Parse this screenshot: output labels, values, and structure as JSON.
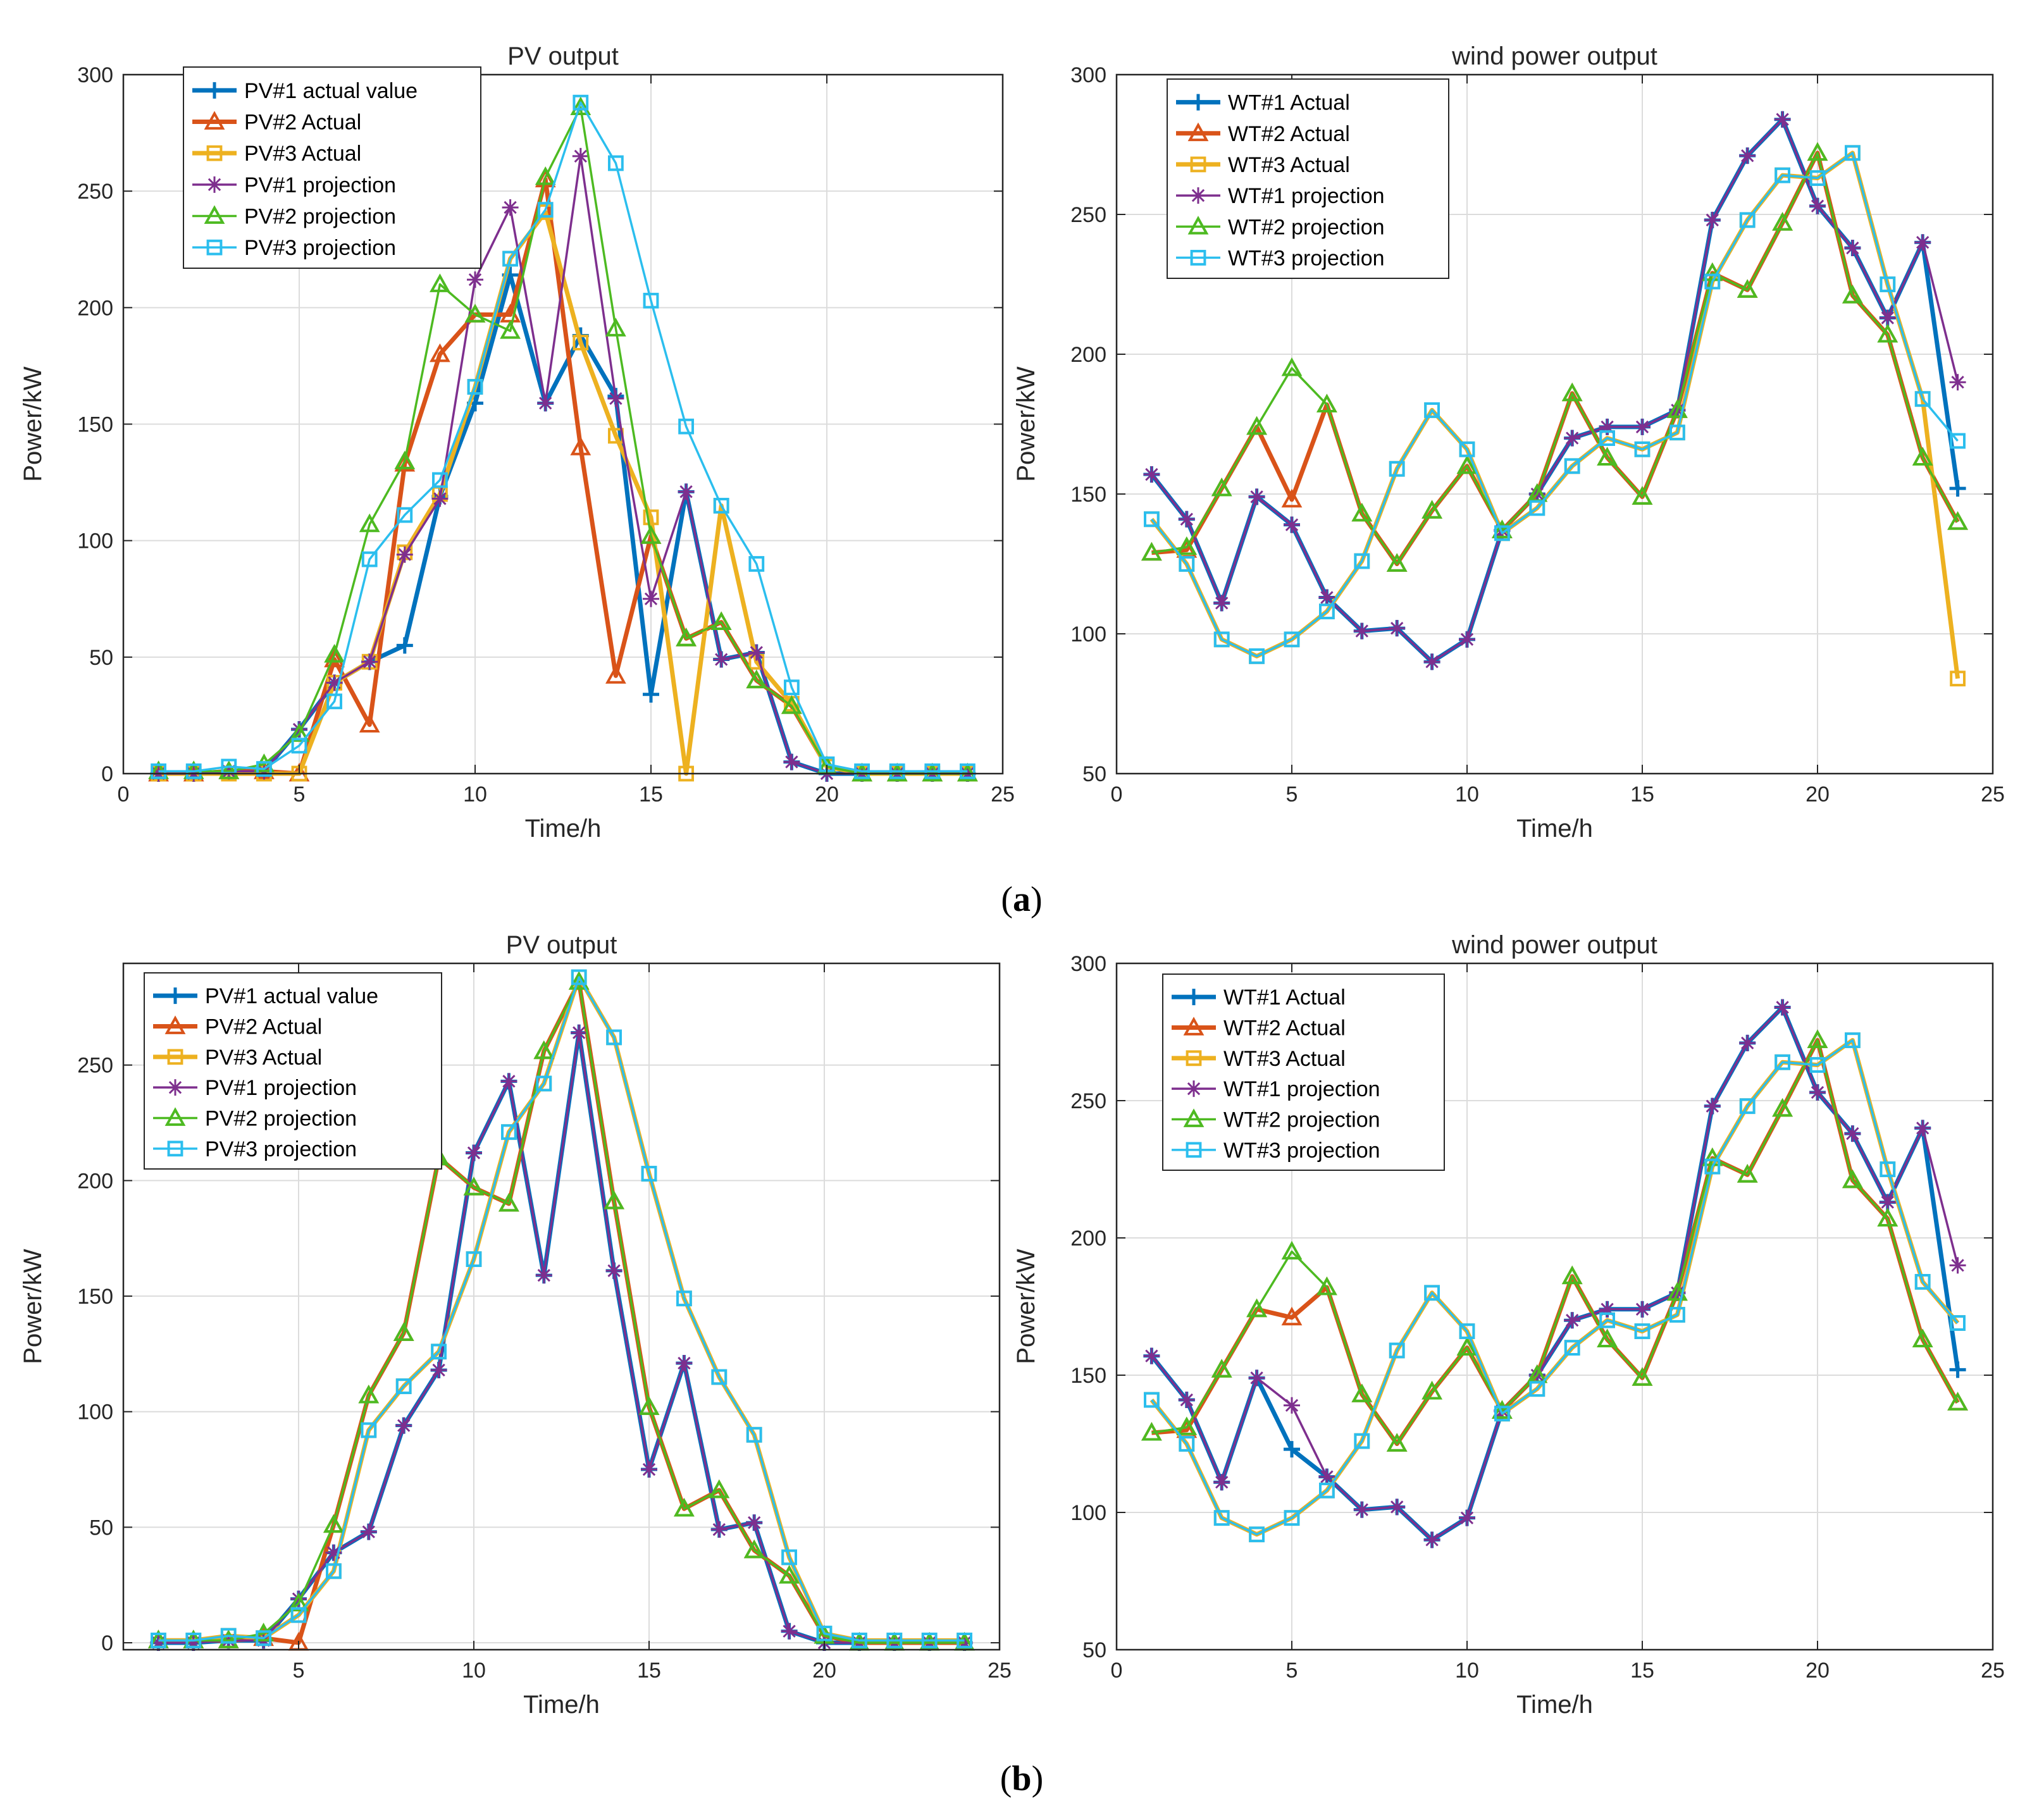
{
  "panel_labels": [
    {
      "open": "(",
      "letter": "a",
      "close": ")"
    },
    {
      "open": "(",
      "letter": "b",
      "close": ")"
    }
  ],
  "series_styles": [
    {
      "color": "#0072BD",
      "marker": "plus",
      "width": 7
    },
    {
      "color": "#D95319",
      "marker": "triangle",
      "width": 7
    },
    {
      "color": "#EDB120",
      "marker": "square",
      "width": 7
    },
    {
      "color": "#7E2F8E",
      "marker": "star",
      "width": 3.5
    },
    {
      "color": "#4DBA21",
      "marker": "triangle",
      "width": 3.5
    },
    {
      "color": "#2BBEEE",
      "marker": "square",
      "width": 3.5
    }
  ],
  "chart_data": [
    {
      "id": "a-pv",
      "type": "line",
      "title": "PV output",
      "xlabel": "Time/h",
      "ylabel": "Power/kW",
      "xlim": [
        0,
        25
      ],
      "ylim": [
        0,
        300
      ],
      "xticks": [
        0,
        5,
        10,
        15,
        20,
        25
      ],
      "yticks": [
        0,
        50,
        100,
        150,
        200,
        250,
        300
      ],
      "xtick_labels": [
        "0",
        "5",
        "10",
        "15",
        "20",
        "25"
      ],
      "ytick_labels": [
        "0",
        "50",
        "100",
        "150",
        "200",
        "250",
        "300"
      ],
      "grid": true,
      "legend_position": "top-left",
      "x": [
        1,
        2,
        3,
        4,
        5,
        6,
        7,
        8,
        9,
        10,
        11,
        12,
        13,
        14,
        15,
        16,
        17,
        18,
        19,
        20,
        21,
        22,
        23,
        24
      ],
      "series": [
        {
          "name": "PV#1 actual value",
          "values": [
            0,
            0,
            1,
            1,
            19,
            39,
            48,
            55,
            119,
            159,
            214,
            159,
            188,
            162,
            34,
            121,
            49,
            52,
            5,
            0,
            0,
            0,
            0,
            0
          ]
        },
        {
          "name": "PV#2 Actual",
          "values": [
            0,
            0,
            1,
            1,
            0,
            49,
            21,
            133,
            180,
            197,
            197,
            255,
            140,
            42,
            102,
            58,
            65,
            40,
            29,
            3,
            0,
            0,
            0,
            0
          ]
        },
        {
          "name": "PV#3 Actual",
          "values": [
            0,
            0,
            0,
            0,
            0,
            39,
            48,
            95,
            120,
            166,
            221,
            241,
            185,
            145,
            110,
            0,
            115,
            48,
            30,
            3,
            0,
            0,
            0,
            0
          ]
        },
        {
          "name": "PV#1 projection",
          "values": [
            0,
            0,
            1,
            1,
            19,
            39,
            48,
            94,
            118,
            212,
            243,
            159,
            265,
            161,
            75,
            121,
            49,
            52,
            5,
            0,
            0,
            0,
            0,
            0
          ]
        },
        {
          "name": "PV#2 projection",
          "values": [
            1,
            1,
            1,
            4,
            17,
            51,
            107,
            134,
            210,
            197,
            190,
            256,
            286,
            191,
            102,
            58,
            65,
            40,
            29,
            3,
            0,
            0,
            0,
            0
          ]
        },
        {
          "name": "PV#3 projection",
          "values": [
            1,
            1,
            3,
            2,
            12,
            31,
            92,
            111,
            126,
            166,
            221,
            242,
            288,
            262,
            203,
            149,
            115,
            90,
            37,
            4,
            1,
            1,
            1,
            1
          ]
        }
      ]
    },
    {
      "id": "a-wind",
      "type": "line",
      "title": "wind power output",
      "xlabel": "Time/h",
      "ylabel": "Power/kW",
      "xlim": [
        0,
        25
      ],
      "ylim": [
        50,
        300
      ],
      "xticks": [
        0,
        5,
        10,
        15,
        20,
        25
      ],
      "yticks": [
        50,
        100,
        150,
        200,
        250,
        300
      ],
      "xtick_labels": [
        "0",
        "5",
        "10",
        "15",
        "20",
        "25"
      ],
      "ytick_labels": [
        "50",
        "100",
        "150",
        "200",
        "250",
        "300"
      ],
      "grid": true,
      "legend_position": "top-left",
      "x": [
        1,
        2,
        3,
        4,
        5,
        6,
        7,
        8,
        9,
        10,
        11,
        12,
        13,
        14,
        15,
        16,
        17,
        18,
        19,
        20,
        21,
        22,
        23,
        24
      ],
      "series": [
        {
          "name": "WT#1 Actual",
          "values": [
            157,
            141,
            111,
            149,
            139,
            113,
            101,
            102,
            90,
            98,
            137,
            150,
            170,
            174,
            174,
            180,
            248,
            271,
            284,
            253,
            238,
            213,
            240,
            152
          ]
        },
        {
          "name": "WT#2 Actual",
          "values": [
            129,
            130,
            152,
            174,
            148,
            182,
            143,
            125,
            144,
            160,
            137,
            150,
            186,
            163,
            149,
            180,
            229,
            223,
            247,
            272,
            221,
            207,
            163,
            140
          ]
        },
        {
          "name": "WT#3 Actual",
          "values": [
            141,
            125,
            98,
            92,
            98,
            108,
            126,
            159,
            180,
            166,
            136,
            145,
            160,
            170,
            166,
            172,
            226,
            248,
            264,
            263,
            272,
            225,
            184,
            84
          ]
        },
        {
          "name": "WT#1 projection",
          "values": [
            157,
            141,
            111,
            149,
            139,
            113,
            101,
            102,
            90,
            98,
            137,
            150,
            170,
            174,
            174,
            180,
            248,
            271,
            284,
            253,
            238,
            213,
            240,
            190
          ]
        },
        {
          "name": "WT#2 projection",
          "values": [
            129,
            131,
            152,
            174,
            195,
            182,
            143,
            125,
            144,
            160,
            137,
            150,
            186,
            163,
            149,
            180,
            229,
            223,
            247,
            272,
            221,
            207,
            163,
            140
          ]
        },
        {
          "name": "WT#3 projection",
          "values": [
            141,
            125,
            98,
            92,
            98,
            108,
            126,
            159,
            180,
            166,
            136,
            145,
            160,
            170,
            166,
            172,
            226,
            248,
            264,
            263,
            272,
            225,
            184,
            169
          ]
        }
      ]
    },
    {
      "id": "b-pv",
      "type": "line",
      "title": "PV output",
      "xlabel": "Time/h",
      "ylabel": "Power/kW",
      "xlim": [
        0,
        25
      ],
      "ylim": [
        -3,
        294
      ],
      "xticks": [
        5,
        10,
        15,
        20,
        25
      ],
      "yticks": [
        0,
        50,
        100,
        150,
        200,
        250
      ],
      "xtick_labels": [
        "5",
        "10",
        "15",
        "20",
        "25"
      ],
      "ytick_labels": [
        "0",
        "50",
        "100",
        "150",
        "200",
        "250"
      ],
      "grid": true,
      "legend_position": "top-left",
      "x": [
        1,
        2,
        3,
        4,
        5,
        6,
        7,
        8,
        9,
        10,
        11,
        12,
        13,
        14,
        15,
        16,
        17,
        18,
        19,
        20,
        21,
        22,
        23,
        24
      ],
      "series": [
        {
          "name": "PV#1 actual value",
          "values": [
            0,
            0,
            1,
            1,
            19,
            39,
            48,
            94,
            118,
            212,
            243,
            159,
            264,
            161,
            75,
            121,
            49,
            52,
            5,
            0,
            0,
            0,
            0,
            0
          ]
        },
        {
          "name": "PV#2 Actual",
          "values": [
            1,
            1,
            1,
            2,
            0,
            51,
            107,
            134,
            210,
            197,
            190,
            256,
            286,
            191,
            102,
            58,
            66,
            40,
            29,
            3,
            0,
            0,
            0,
            0
          ]
        },
        {
          "name": "PV#3 Actual",
          "values": [
            1,
            1,
            3,
            2,
            12,
            31,
            92,
            111,
            126,
            166,
            221,
            242,
            288,
            262,
            203,
            149,
            115,
            90,
            37,
            4,
            1,
            1,
            1,
            1
          ]
        },
        {
          "name": "PV#1 projection",
          "values": [
            0,
            0,
            1,
            1,
            19,
            39,
            48,
            94,
            118,
            212,
            243,
            159,
            264,
            161,
            75,
            121,
            49,
            52,
            5,
            0,
            0,
            0,
            0,
            0
          ]
        },
        {
          "name": "PV#2 projection",
          "values": [
            1,
            1,
            1,
            4,
            17,
            51,
            107,
            134,
            210,
            197,
            190,
            256,
            286,
            191,
            102,
            58,
            66,
            40,
            29,
            3,
            0,
            0,
            0,
            0
          ]
        },
        {
          "name": "PV#3 projection",
          "values": [
            1,
            1,
            3,
            2,
            12,
            31,
            92,
            111,
            126,
            166,
            221,
            242,
            288,
            262,
            203,
            149,
            115,
            90,
            37,
            4,
            1,
            1,
            1,
            1
          ]
        }
      ]
    },
    {
      "id": "b-wind",
      "type": "line",
      "title": "wind power output",
      "xlabel": "Time/h",
      "ylabel": "Power/kW",
      "xlim": [
        0,
        25
      ],
      "ylim": [
        50,
        300
      ],
      "xticks": [
        0,
        5,
        10,
        15,
        20,
        25
      ],
      "yticks": [
        50,
        100,
        150,
        200,
        250,
        300
      ],
      "xtick_labels": [
        "0",
        "5",
        "10",
        "15",
        "20",
        "25"
      ],
      "ytick_labels": [
        "50",
        "100",
        "150",
        "200",
        "250",
        "300"
      ],
      "grid": true,
      "legend_position": "top-left",
      "x": [
        1,
        2,
        3,
        4,
        5,
        6,
        7,
        8,
        9,
        10,
        11,
        12,
        13,
        14,
        15,
        16,
        17,
        18,
        19,
        20,
        21,
        22,
        23,
        24
      ],
      "series": [
        {
          "name": "WT#1 Actual",
          "values": [
            157,
            141,
            111,
            149,
            123,
            113,
            101,
            102,
            90,
            98,
            137,
            150,
            170,
            174,
            174,
            180,
            248,
            271,
            284,
            253,
            238,
            213,
            240,
            152
          ]
        },
        {
          "name": "WT#2 Actual",
          "values": [
            129,
            130,
            152,
            174,
            171,
            182,
            143,
            125,
            144,
            160,
            137,
            150,
            186,
            163,
            149,
            180,
            229,
            223,
            247,
            272,
            221,
            207,
            163,
            140
          ]
        },
        {
          "name": "WT#3 Actual",
          "values": [
            141,
            125,
            98,
            92,
            98,
            108,
            126,
            159,
            180,
            166,
            136,
            145,
            160,
            170,
            166,
            172,
            226,
            248,
            264,
            263,
            272,
            225,
            184,
            169
          ]
        },
        {
          "name": "WT#1 projection",
          "values": [
            157,
            141,
            111,
            149,
            139,
            113,
            101,
            102,
            90,
            98,
            137,
            150,
            170,
            174,
            174,
            180,
            248,
            271,
            284,
            253,
            238,
            213,
            240,
            190
          ]
        },
        {
          "name": "WT#2 projection",
          "values": [
            129,
            131,
            152,
            174,
            195,
            182,
            143,
            125,
            144,
            160,
            137,
            150,
            186,
            163,
            149,
            180,
            229,
            223,
            247,
            272,
            221,
            207,
            163,
            140
          ]
        },
        {
          "name": "WT#3 projection",
          "values": [
            141,
            125,
            98,
            92,
            98,
            108,
            126,
            159,
            180,
            166,
            136,
            145,
            160,
            170,
            166,
            172,
            226,
            248,
            264,
            263,
            272,
            225,
            184,
            169
          ]
        }
      ]
    }
  ]
}
